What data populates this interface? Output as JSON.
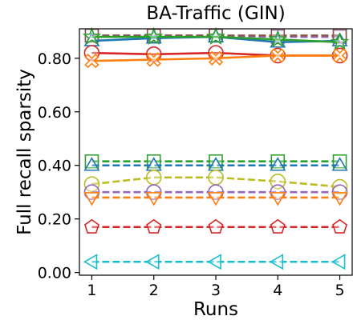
{
  "chart_data": {
    "type": "line",
    "title": "BA-Traffic (GIN)",
    "xlabel": "Runs",
    "ylabel": "Full recall sparsity",
    "x": [
      1,
      2,
      3,
      4,
      5
    ],
    "x_ticks": [
      "1",
      "2",
      "3",
      "4",
      "5"
    ],
    "xlim": [
      0.8,
      5.2
    ],
    "ylim": [
      -0.01,
      0.91
    ],
    "y_ticks": [
      {
        "value": 0.0,
        "label": "0.00"
      },
      {
        "value": 0.2,
        "label": "0.20"
      },
      {
        "value": 0.4,
        "label": "0.40"
      },
      {
        "value": 0.6,
        "label": "0.60"
      },
      {
        "value": 0.8,
        "label": "0.80"
      }
    ],
    "grid": false,
    "legend": "none",
    "series": [
      {
        "color": "#9467bd",
        "dash": true,
        "marker": "square",
        "values": [
          0.885,
          0.885,
          0.885,
          0.88,
          0.88
        ]
      },
      {
        "color": "#8c564b",
        "dash": true,
        "marker": "square",
        "values": [
          0.885,
          0.885,
          0.885,
          0.885,
          0.885
        ]
      },
      {
        "color": "#1f77b4",
        "dash": false,
        "marker": "triangle-up",
        "values": [
          0.865,
          0.875,
          0.88,
          0.86,
          0.865
        ]
      },
      {
        "color": "#2ca02c",
        "dash": false,
        "marker": "star",
        "values": [
          0.88,
          0.88,
          0.88,
          0.87,
          0.86
        ]
      },
      {
        "color": "#d62728",
        "dash": false,
        "marker": "circle",
        "values": [
          0.82,
          0.815,
          0.82,
          0.81,
          0.81
        ]
      },
      {
        "color": "#ff7f0e",
        "dash": false,
        "marker": "x",
        "values": [
          0.79,
          0.795,
          0.8,
          0.81,
          0.81
        ]
      },
      {
        "color": "#2ca02c",
        "dash": true,
        "marker": "square",
        "values": [
          0.415,
          0.415,
          0.415,
          0.415,
          0.415
        ]
      },
      {
        "color": "#1f77b4",
        "dash": true,
        "marker": "triangle-up",
        "values": [
          0.4,
          0.4,
          0.4,
          0.4,
          0.4
        ]
      },
      {
        "color": "#bcbd22",
        "dash": true,
        "marker": "circle",
        "values": [
          0.33,
          0.355,
          0.355,
          0.34,
          0.32
        ]
      },
      {
        "color": "#9467bd",
        "dash": true,
        "marker": "circle",
        "values": [
          0.3,
          0.3,
          0.3,
          0.3,
          0.3
        ]
      },
      {
        "color": "#ff7f0e",
        "dash": true,
        "marker": "triangle-down",
        "values": [
          0.28,
          0.28,
          0.28,
          0.28,
          0.28
        ]
      },
      {
        "color": "#d62728",
        "dash": true,
        "marker": "pentagon",
        "values": [
          0.17,
          0.17,
          0.17,
          0.17,
          0.17
        ]
      },
      {
        "color": "#17becf",
        "dash": true,
        "marker": "triangle-left",
        "values": [
          0.04,
          0.04,
          0.04,
          0.04,
          0.04
        ]
      }
    ]
  }
}
